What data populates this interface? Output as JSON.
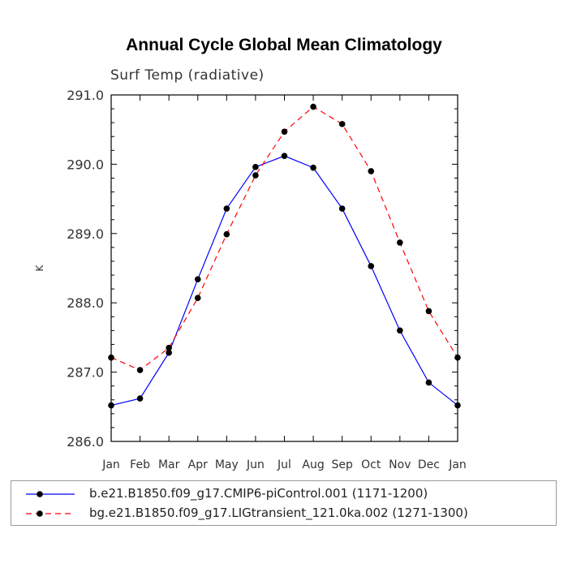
{
  "chart_data": {
    "type": "line",
    "title": "Annual Cycle Global Mean Climatology",
    "subtitle": "Surf Temp (radiative)",
    "ylabel": "K",
    "xlabel": "",
    "categories": [
      "Jan",
      "Feb",
      "Mar",
      "Apr",
      "May",
      "Jun",
      "Jul",
      "Aug",
      "Sep",
      "Oct",
      "Nov",
      "Dec",
      "Jan"
    ],
    "ylim": [
      286.0,
      291.0
    ],
    "yticks": [
      "286.0",
      "287.0",
      "288.0",
      "289.0",
      "290.0",
      "291.0"
    ],
    "series": [
      {
        "name": "b.e21.B1850.f09_g17.CMIP6-piControl.001 (1171-1200)",
        "color": "#0000ff",
        "dash": "solid",
        "values": [
          286.52,
          286.62,
          287.28,
          288.34,
          289.36,
          289.96,
          290.12,
          289.95,
          289.36,
          288.53,
          287.6,
          286.85,
          286.52
        ]
      },
      {
        "name": "bg.e21.B1850.f09_g17.LIGtransient_121.0ka.002 (1271-1300)",
        "color": "#ff0000",
        "dash": "dashed",
        "values": [
          287.21,
          287.03,
          287.35,
          288.07,
          288.99,
          289.84,
          290.47,
          290.83,
          290.58,
          289.9,
          288.87,
          287.88,
          287.21
        ]
      }
    ],
    "grid": false,
    "legend_position": "bottom"
  }
}
